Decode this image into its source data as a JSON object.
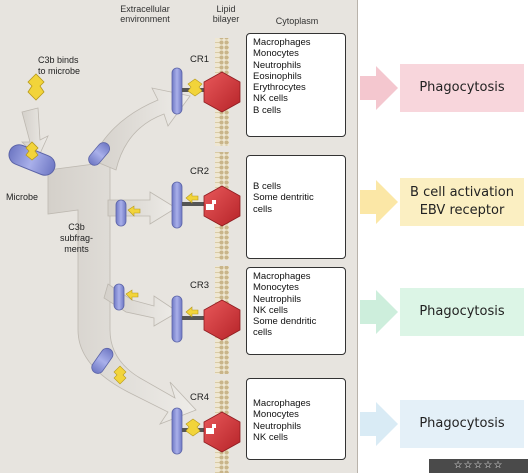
{
  "headers": {
    "extracellular": "Extracellular\nenvironment",
    "lipid": "Lipid\nbilayer",
    "cytoplasm": "Cytoplasm"
  },
  "labels": {
    "c3b_binds": "C3b binds\nto microbe",
    "microbe": "Microbe",
    "subfragments": "C3b\nsubfrag-\nments"
  },
  "receptors": [
    {
      "name": "CR1",
      "cells": [
        "Macrophages",
        "Monocytes",
        "Neutrophils",
        "Eosinophils",
        "Erythrocytes",
        "NK cells",
        "B cells"
      ],
      "outcome": "Phagocytosis",
      "color": "#f8d6dc",
      "arrow_color": "#f4c7cf"
    },
    {
      "name": "CR2",
      "cells": [
        "B cells",
        "Some dentritic",
        "cells"
      ],
      "outcome": "B cell activation\nEBV receptor",
      "color": "#fbefc2",
      "arrow_color": "#fbe7a6"
    },
    {
      "name": "CR3",
      "cells": [
        "Macrophages",
        "Monocytes",
        "Neutrophils",
        "NK cells",
        "Some dendritic",
        "cells"
      ],
      "outcome": "Phagocytosis",
      "color": "#dcf5e6",
      "arrow_color": "#cdeedc"
    },
    {
      "name": "CR4",
      "cells": [
        "Macrophages",
        "Monocytes",
        "Neutrophils",
        "NK cells"
      ],
      "outcome": "Phagocytosis",
      "color": "#e4f0f8",
      "arrow_color": "#d9ebf5"
    }
  ],
  "colors": {
    "panel_bg": "#e7e4df",
    "receptor_blue": "#8f98d8",
    "c3b_yellow": "#f2d43a",
    "hexagon_red": "#d8343a",
    "bilayer": "#d9c9a5"
  },
  "rating": "☆☆☆☆☆"
}
